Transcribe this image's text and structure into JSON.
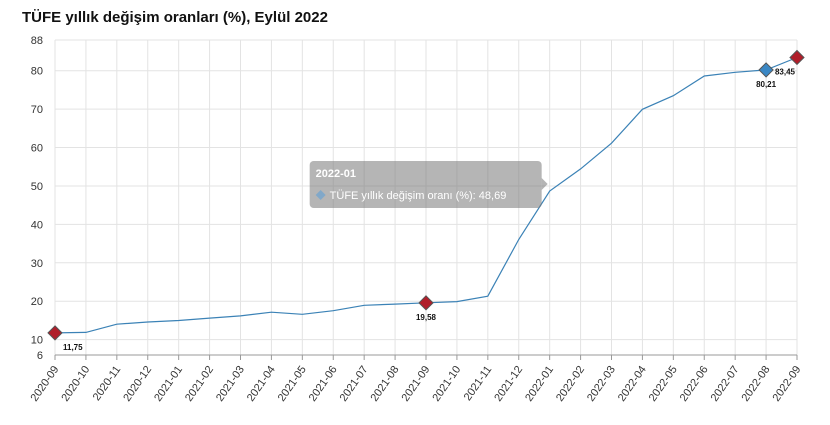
{
  "chart_data": {
    "type": "line",
    "title": "TÜFE yıllık değişim oranları (%), Eylül 2022",
    "xlabel": "",
    "ylabel": "",
    "ylim": [
      6,
      88
    ],
    "yticks": [
      6,
      10,
      20,
      30,
      40,
      50,
      60,
      70,
      80,
      88
    ],
    "grid": true,
    "legend": "none",
    "categories": [
      "2020-09",
      "2020-10",
      "2020-11",
      "2020-12",
      "2021-01",
      "2021-02",
      "2021-03",
      "2021-04",
      "2021-05",
      "2021-06",
      "2021-07",
      "2021-08",
      "2021-09",
      "2021-10",
      "2021-11",
      "2021-12",
      "2022-01",
      "2022-02",
      "2022-03",
      "2022-04",
      "2022-05",
      "2022-06",
      "2022-07",
      "2022-08",
      "2022-09"
    ],
    "series": [
      {
        "name": "TÜFE yıllık değişim oranı (%)",
        "color": "#3b82b6",
        "values": [
          11.75,
          11.89,
          14.03,
          14.6,
          14.97,
          15.61,
          16.19,
          17.14,
          16.59,
          17.53,
          18.95,
          19.25,
          19.58,
          19.89,
          21.31,
          36.08,
          48.69,
          54.44,
          61.14,
          69.97,
          73.5,
          78.62,
          79.6,
          80.21,
          83.45
        ]
      }
    ],
    "highlighted_points": [
      {
        "index": 0,
        "label": "11,75",
        "color": "#b01e2a"
      },
      {
        "index": 12,
        "label": "19,58",
        "color": "#b01e2a"
      },
      {
        "index": 23,
        "label": "80,21",
        "color": "#3a87c4"
      },
      {
        "index": 24,
        "label": "83,45",
        "color": "#b01e2a"
      }
    ],
    "tooltip": {
      "title": "2022-01",
      "text": "TÜFE yıllık değişim oranı (%): 48,69",
      "index": 16
    }
  }
}
